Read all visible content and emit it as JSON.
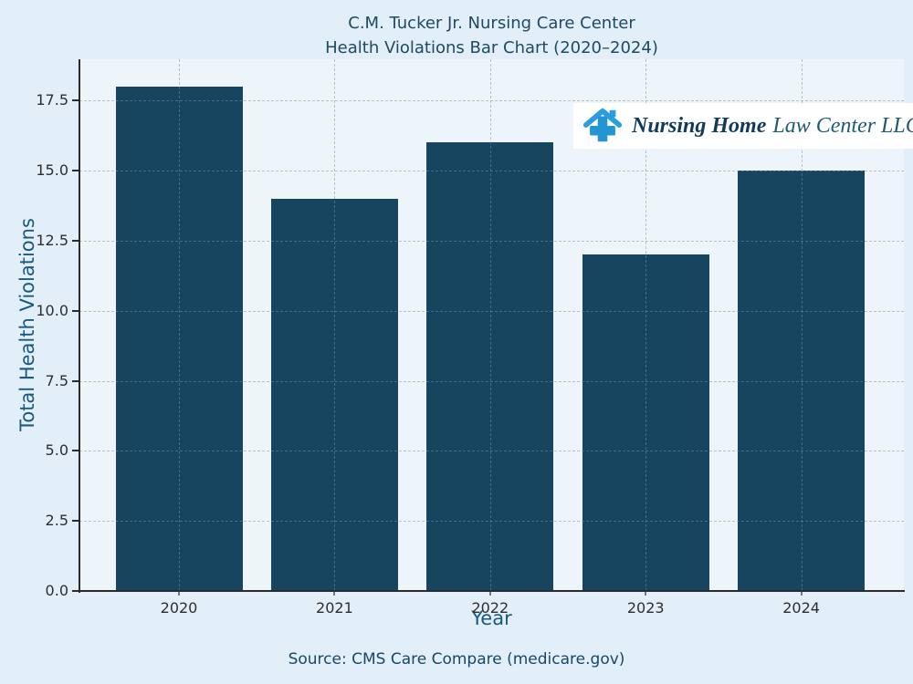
{
  "title": {
    "line1": "C.M. Tucker Jr. Nursing Care Center",
    "line2": "Health Violations Bar Chart (2020–2024)"
  },
  "chart_data": {
    "type": "bar",
    "categories": [
      "2020",
      "2021",
      "2022",
      "2023",
      "2024"
    ],
    "values": [
      18,
      14,
      16,
      12,
      15
    ],
    "title": "C.M. Tucker Jr. Nursing Care Center — Health Violations Bar Chart (2020–2024)",
    "xlabel": "Year",
    "ylabel": "Total Health Violations",
    "ylim": [
      0,
      18.97
    ],
    "y_ticks": [
      0.0,
      2.5,
      5.0,
      7.5,
      10.0,
      12.5,
      15.0,
      17.5
    ],
    "grid": "dashed, horizontal at y-ticks and vertical at bar centers",
    "legend": "none"
  },
  "source": {
    "text": "Source: CMS Care Compare (medicare.gov)"
  },
  "logo": {
    "brand_bold": "Nursing Home",
    "brand_regular": "Law Center LLC",
    "icon": "house-medical-cross-icon"
  },
  "colors": {
    "figure_bg": "#e2eef8",
    "plot_bg": "#edf4fa",
    "bar": "#17455f",
    "grid": "rgba(120,145,165,0.5)",
    "spine": "#2b2b2b",
    "tick_label": "#2e2e2e",
    "title": "#1e4a63",
    "axis_label": "#175a7d",
    "source_text": "#17486a",
    "logo_bg": "#ffffff",
    "logo_navy": "#123a5a",
    "logo_teal": "#1d5b74",
    "logo_icon_blue": "#2196d3"
  }
}
